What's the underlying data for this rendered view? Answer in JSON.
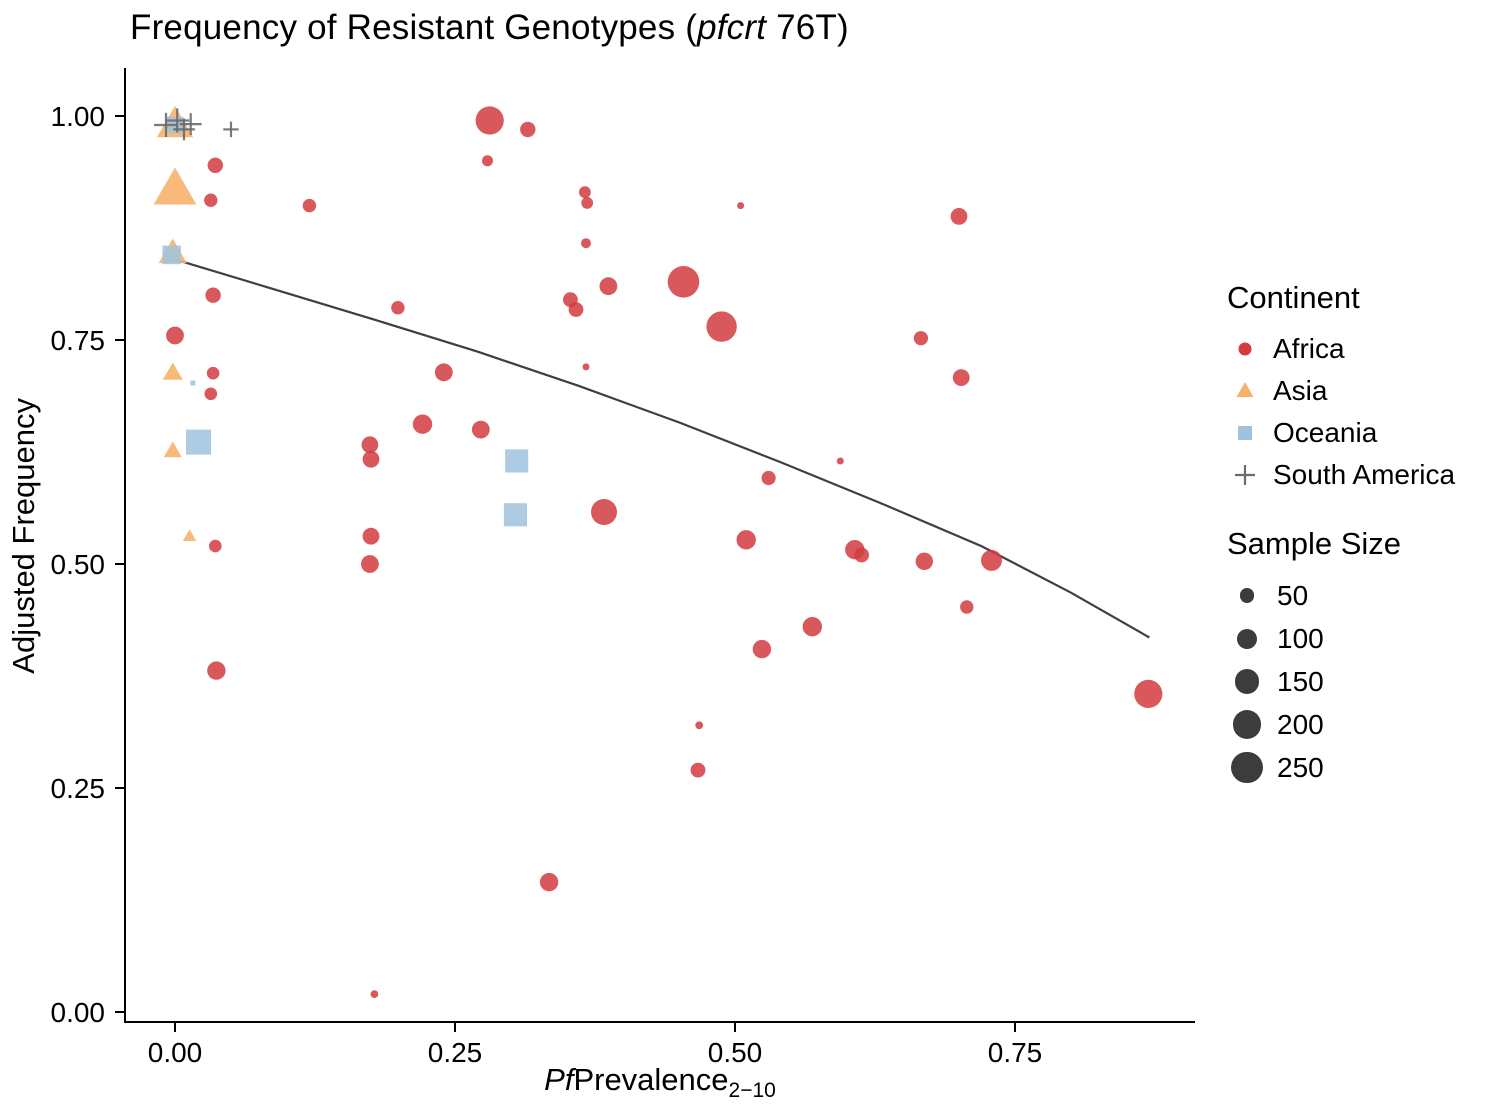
{
  "chart": {
    "title": {
      "prefix": "Frequency of Resistant Genotypes (",
      "italic": "pfcrt",
      "suffix": " 76T)"
    },
    "ylabel": "Adjusted Frequency",
    "xlabel": {
      "italic": "Pf",
      "main": "Prevalence",
      "sub": "2−10"
    }
  },
  "legend": {
    "continent_title": "Continent",
    "continents": [
      {
        "label": "Africa",
        "marker": "circle",
        "color": "#d13b40"
      },
      {
        "label": "Asia",
        "marker": "triangle",
        "color": "#f6b26b"
      },
      {
        "label": "Oceania",
        "marker": "square",
        "color": "#9fc3de"
      },
      {
        "label": "South America",
        "marker": "plus",
        "color": "#6b6b6b"
      }
    ],
    "size_title": "Sample Size",
    "sizes": [
      50,
      100,
      150,
      200,
      250
    ]
  },
  "chart_data": {
    "type": "scatter",
    "title": "Frequency of Resistant Genotypes (pfcrt 76T)",
    "xlabel": "PfPrevalence2−10",
    "ylabel": "Adjusted Frequency",
    "xlim": [
      -0.045,
      0.91
    ],
    "ylim": [
      -0.02,
      1.05
    ],
    "grid": false,
    "legend_position": "right",
    "size_encoding": "point area proportional to sample size (50–250)",
    "x_ticks": {
      "values": [
        0,
        0.25,
        0.5,
        0.75
      ],
      "labels": [
        "0.00",
        "0.25",
        "0.50",
        "0.75"
      ]
    },
    "y_ticks": {
      "values": [
        0,
        0.25,
        0.5,
        0.75,
        1.0
      ],
      "labels": [
        "0.00",
        "0.25",
        "0.50",
        "0.75",
        "1.00"
      ]
    },
    "trend_line": {
      "color": "#3f3f3f",
      "points": [
        [
          0,
          0.84
        ],
        [
          0.09,
          0.806
        ],
        [
          0.18,
          0.772
        ],
        [
          0.27,
          0.737
        ],
        [
          0.36,
          0.699
        ],
        [
          0.45,
          0.658
        ],
        [
          0.54,
          0.614
        ],
        [
          0.63,
          0.568
        ],
        [
          0.72,
          0.52
        ],
        [
          0.8,
          0.468
        ],
        [
          0.87,
          0.418
        ]
      ]
    },
    "series": [
      {
        "name": "Asia",
        "marker": "triangle",
        "color": "#f6b26b",
        "points": [
          [
            0.0,
            0.988,
            180
          ],
          [
            0.0,
            0.915,
            250
          ],
          [
            -0.002,
            0.845,
            110
          ],
          [
            -0.002,
            0.712,
            55
          ],
          [
            -0.002,
            0.625,
            45
          ],
          [
            0.013,
            0.53,
            25
          ]
        ]
      },
      {
        "name": "Oceania",
        "marker": "square",
        "color": "#9fc3de",
        "points": [
          [
            0.0,
            0.99,
            90
          ],
          [
            -0.003,
            0.845,
            110
          ],
          [
            0.016,
            0.702,
            8
          ],
          [
            0.021,
            0.636,
            200
          ],
          [
            0.305,
            0.615,
            170
          ],
          [
            0.304,
            0.555,
            170
          ]
        ]
      },
      {
        "name": "Africa",
        "marker": "circle",
        "color": "#d13b40",
        "points": [
          [
            0.281,
            0.995,
            200
          ],
          [
            0.315,
            0.985,
            60
          ],
          [
            0.279,
            0.95,
            30
          ],
          [
            0.036,
            0.945,
            60
          ],
          [
            0.366,
            0.915,
            35
          ],
          [
            0.368,
            0.903,
            35
          ],
          [
            0.032,
            0.906,
            45
          ],
          [
            0.505,
            0.9,
            12
          ],
          [
            0.12,
            0.9,
            45
          ],
          [
            0.7,
            0.888,
            70
          ],
          [
            0.367,
            0.858,
            25
          ],
          [
            0.454,
            0.815,
            250
          ],
          [
            0.387,
            0.81,
            80
          ],
          [
            0.353,
            0.795,
            55
          ],
          [
            0.358,
            0.784,
            55
          ],
          [
            0.034,
            0.8,
            60
          ],
          [
            0.199,
            0.786,
            45
          ],
          [
            0.488,
            0.765,
            230
          ],
          [
            0.0,
            0.755,
            80
          ],
          [
            0.666,
            0.752,
            50
          ],
          [
            0.367,
            0.72,
            12
          ],
          [
            0.034,
            0.713,
            40
          ],
          [
            0.702,
            0.708,
            70
          ],
          [
            0.24,
            0.714,
            80
          ],
          [
            0.032,
            0.69,
            40
          ],
          [
            0.221,
            0.656,
            95
          ],
          [
            0.273,
            0.65,
            80
          ],
          [
            0.174,
            0.633,
            70
          ],
          [
            0.175,
            0.617,
            70
          ],
          [
            0.53,
            0.596,
            50
          ],
          [
            0.594,
            0.615,
            12
          ],
          [
            0.383,
            0.558,
            170
          ],
          [
            0.175,
            0.531,
            70
          ],
          [
            0.036,
            0.52,
            40
          ],
          [
            0.51,
            0.527,
            95
          ],
          [
            0.174,
            0.5,
            80
          ],
          [
            0.607,
            0.516,
            95
          ],
          [
            0.613,
            0.51,
            55
          ],
          [
            0.669,
            0.503,
            75
          ],
          [
            0.729,
            0.504,
            110
          ],
          [
            0.707,
            0.452,
            45
          ],
          [
            0.569,
            0.43,
            95
          ],
          [
            0.524,
            0.405,
            85
          ],
          [
            0.037,
            0.381,
            85
          ],
          [
            0.869,
            0.355,
            200
          ],
          [
            0.468,
            0.32,
            15
          ],
          [
            0.467,
            0.27,
            55
          ],
          [
            0.334,
            0.145,
            85
          ],
          [
            0.178,
            0.02,
            15
          ]
        ]
      },
      {
        "name": "South America",
        "marker": "plus",
        "color": "#6b6b6b",
        "points": [
          [
            -0.008,
            0.99,
            110
          ],
          [
            0.002,
            0.995,
            110
          ],
          [
            0.008,
            0.985,
            90
          ],
          [
            0.014,
            0.991,
            90
          ],
          [
            0.05,
            0.985,
            45
          ]
        ]
      }
    ]
  }
}
